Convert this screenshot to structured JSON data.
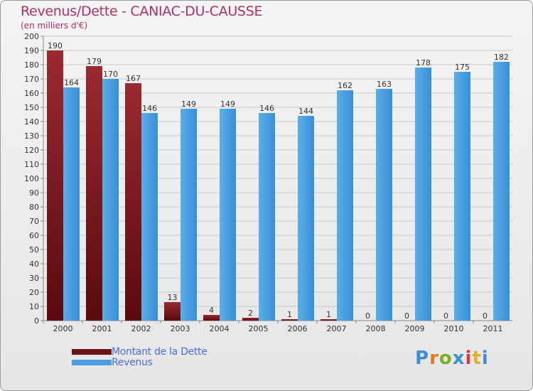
{
  "chart_data": {
    "type": "bar",
    "title": "Revenus/Dette - CANIAC-DU-CAUSSE",
    "subtitle": "(en milliers d'€)",
    "categories": [
      "2000",
      "2001",
      "2002",
      "2003",
      "2004",
      "2005",
      "2006",
      "2007",
      "2008",
      "2009",
      "2010",
      "2011"
    ],
    "series": [
      {
        "name": "Montant de la Dette",
        "color": "#7a1d22",
        "values": [
          190,
          179,
          167,
          13,
          4,
          2,
          1,
          1,
          0,
          0,
          0,
          0
        ]
      },
      {
        "name": "Revenus",
        "color": "#4aa0e0",
        "values": [
          164,
          170,
          146,
          149,
          149,
          146,
          144,
          162,
          163,
          178,
          175,
          182
        ]
      }
    ],
    "ylim": [
      0,
      200
    ],
    "yticks": [
      0,
      10,
      20,
      30,
      40,
      50,
      60,
      70,
      80,
      90,
      100,
      110,
      120,
      130,
      140,
      150,
      160,
      170,
      180,
      190,
      200
    ],
    "grid": true,
    "legend": "bottom-left"
  },
  "legend": {
    "debt_label": "Montant de la Dette",
    "revenue_label": "Revenus"
  },
  "logo": {
    "text": "Proxiti",
    "colors": [
      "#3a8fd8",
      "#e07a1a",
      "#7ab020",
      "#3a8fd8",
      "#d83a3a",
      "#e0b020",
      "#3a8fd8"
    ]
  }
}
